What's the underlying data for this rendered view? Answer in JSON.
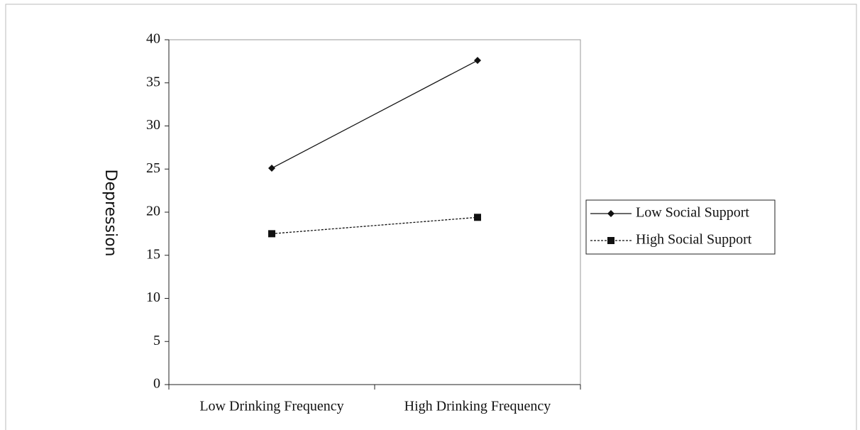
{
  "chart_data": {
    "type": "line",
    "y_label": "Depression",
    "categories": [
      "Low Drinking Frequency",
      "High Drinking Frequency"
    ],
    "series": [
      {
        "name": "Low Social Support",
        "color": "#111111",
        "line_style": "solid",
        "marker": "diamond",
        "values": [
          25.1,
          37.6
        ]
      },
      {
        "name": "High Social Support",
        "color": "#111111",
        "line_style": "dashed",
        "marker": "square",
        "values": [
          17.5,
          19.4
        ]
      }
    ],
    "ylim": [
      0,
      40
    ],
    "yticks": [
      0,
      5,
      10,
      15,
      20,
      25,
      30,
      35,
      40
    ],
    "legend": "right"
  }
}
